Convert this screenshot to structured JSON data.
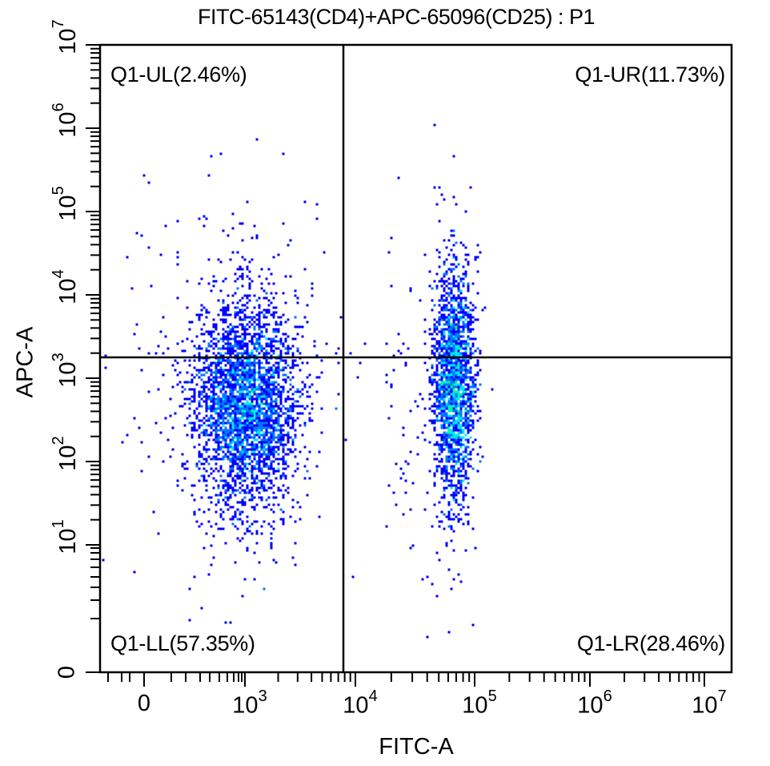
{
  "chart_data": {
    "type": "scatter",
    "subtype": "flow-cytometry-density-dot-plot",
    "title": "FITC-65143(CD4)+APC-65096(CD25) : P1",
    "xlabel": "FITC-A",
    "ylabel": "APC-A",
    "x_scale": "biexponential/log",
    "y_scale": "biexponential/log",
    "x_ticks": [
      "0",
      "10^3",
      "10^4",
      "10^5",
      "10^6",
      "10^7"
    ],
    "y_ticks": [
      "0",
      "10^1",
      "10^2",
      "10^3",
      "10^4",
      "10^5",
      "10^6",
      "10^7"
    ],
    "xlim": [
      "below 0",
      "10^7"
    ],
    "ylim": [
      "0",
      "10^7"
    ],
    "grid": false,
    "quadrant_gate": {
      "name": "Q1",
      "x_threshold_approx": 7500,
      "y_threshold_approx": 1800
    },
    "quadrants": [
      {
        "name": "Q1-UL",
        "percent": 2.46,
        "label": "Q1-UL(2.46%)"
      },
      {
        "name": "Q1-UR",
        "percent": 11.73,
        "label": "Q1-UR(11.73%)"
      },
      {
        "name": "Q1-LL",
        "percent": 57.35,
        "label": "Q1-LL(57.35%)"
      },
      {
        "name": "Q1-LR",
        "percent": 28.46,
        "label": "Q1-LR(28.46%)"
      }
    ],
    "populations": [
      {
        "name": "CD4-negative cluster",
        "x_center_approx": 1100,
        "y_center_approx": 500,
        "quadrant": "mostly Q1-LL"
      },
      {
        "name": "CD4-positive cluster",
        "x_center_approx": 70000,
        "y_center_approx": 800,
        "quadrant": "Q1-LR / Q1-UR"
      }
    ],
    "density_colors": [
      "#0000ff",
      "#0077ff",
      "#00e5ff",
      "#00ff88",
      "#d6ff00",
      "#ff0000"
    ]
  },
  "labels": {
    "title": "FITC-65143(CD4)+APC-65096(CD25) : P1",
    "xlabel": "FITC-A",
    "ylabel": "APC-A",
    "q_ul": "Q1-UL(2.46%)",
    "q_ur": "Q1-UR(11.73%)",
    "q_ll": "Q1-LL(57.35%)",
    "q_lr": "Q1-LR(28.46%)",
    "x_ticks": [
      {
        "base": "0",
        "exp": ""
      },
      {
        "base": "10",
        "exp": "3"
      },
      {
        "base": "10",
        "exp": "4"
      },
      {
        "base": "10",
        "exp": "5"
      },
      {
        "base": "10",
        "exp": "6"
      },
      {
        "base": "10",
        "exp": "7"
      }
    ],
    "y_ticks": [
      {
        "base": "0",
        "exp": ""
      },
      {
        "base": "10",
        "exp": "1"
      },
      {
        "base": "10",
        "exp": "2"
      },
      {
        "base": "10",
        "exp": "3"
      },
      {
        "base": "10",
        "exp": "4"
      },
      {
        "base": "10",
        "exp": "5"
      },
      {
        "base": "10",
        "exp": "6"
      },
      {
        "base": "10",
        "exp": "7"
      }
    ]
  }
}
